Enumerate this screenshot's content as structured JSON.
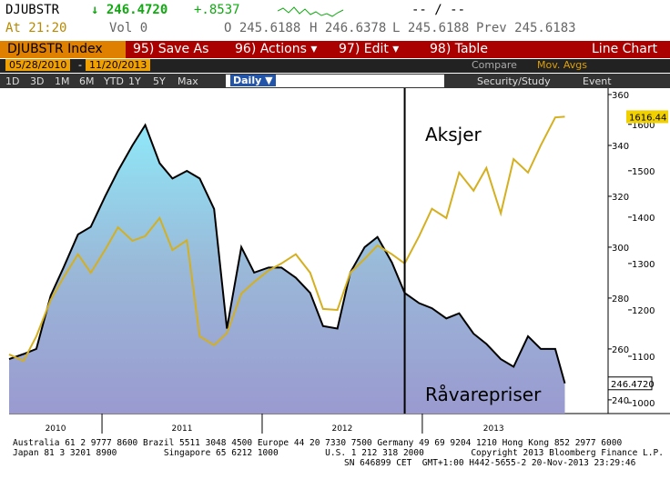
{
  "header": {
    "ticker": "DJUBSTR",
    "last": "↓ 246.4720",
    "change": "+.8537",
    "bid_ask": "-- / --",
    "time": "At 21:20",
    "volume": "Vol 0",
    "open": "O 245.6188",
    "high": "H 246.6378",
    "low": "L 245.6188",
    "prev": "Prev 245.6183"
  },
  "menu": {
    "security": "DJUBSTR Index",
    "items": [
      "95) Save As",
      "96) Actions ▾",
      "97) Edit ▾",
      "98) Table"
    ],
    "view": "Line Chart"
  },
  "range": {
    "start": "05/28/2010",
    "separator": "-",
    "end": "11/20/2013",
    "compare": "Compare",
    "mov_avgs": "Mov. Avgs"
  },
  "periods": {
    "buttons": [
      "1D",
      "3D",
      "1M",
      "6M",
      "YTD",
      "1Y",
      "5Y",
      "Max"
    ],
    "frequency": "Daily ▼",
    "study": "Security/Study",
    "event": "Event"
  },
  "chart_data": {
    "type": "line",
    "x": [
      2010.42,
      2010.51,
      2010.59,
      2010.68,
      2010.76,
      2010.85,
      2010.93,
      2011.02,
      2011.1,
      2011.19,
      2011.27,
      2011.36,
      2011.44,
      2011.53,
      2011.61,
      2011.7,
      2011.78,
      2011.87,
      2011.95,
      2012.04,
      2012.12,
      2012.21,
      2012.3,
      2012.38,
      2012.47,
      2012.55,
      2012.64,
      2012.72,
      2012.81,
      2012.89,
      2012.98,
      2013.06,
      2013.15,
      2013.23,
      2013.32,
      2013.4,
      2013.49,
      2013.57,
      2013.66,
      2013.74,
      2013.83,
      2013.89
    ],
    "series": [
      {
        "name": "Råvarepriser",
        "color": "#000000",
        "values": [
          256,
          258,
          260,
          281,
          292,
          305,
          308,
          320,
          330,
          340,
          348,
          333,
          327,
          330,
          327,
          315,
          268,
          300,
          290,
          292,
          292,
          288,
          282,
          269,
          268,
          290,
          300,
          304,
          294,
          282,
          278,
          276,
          272,
          274,
          266,
          262,
          256,
          253,
          265,
          260,
          260,
          246.47
        ],
        "last_label": "246.4720"
      },
      {
        "name": "Aksjer",
        "color": "#d4b020",
        "axis": "y2",
        "values": [
          1104,
          1090,
          1143,
          1222,
          1270,
          1320,
          1280,
          1330,
          1378,
          1349,
          1359,
          1398,
          1329,
          1350,
          1143,
          1124,
          1150,
          1235,
          1260,
          1285,
          1300,
          1320,
          1280,
          1202,
          1200,
          1280,
          1310,
          1339,
          1320,
          1300,
          1359,
          1418,
          1398,
          1496,
          1457,
          1506,
          1408,
          1525,
          1496,
          1555,
          1615,
          1616.44
        ],
        "last_label": "1616.44"
      }
    ],
    "xlim": [
      2010.42,
      2014.16
    ],
    "xticks": [
      2011,
      2012,
      2013
    ],
    "year_labels": [
      "2010",
      "2011",
      "2012",
      "2013"
    ],
    "ylim": [
      234.6,
      362.5
    ],
    "yticks": [
      240,
      260,
      280,
      300,
      320,
      340,
      360
    ],
    "y2lim": [
      976.5,
      1678
    ],
    "y2ticks": [
      1000,
      1100,
      1200,
      1300,
      1400,
      1500,
      1600
    ],
    "marker_x": 2012.89
  },
  "footer": [
    "Australia 61 2 9777 8600 Brazil 5511 3048 4500 Europe 44 20 7330 7500 Germany 49 69 9204 1210 Hong Kong 852 2977 6000",
    "Japan 81 3 3201 8900         Singapore 65 6212 1000         U.S. 1 212 318 2000         Copyright 2013 Bloomberg Finance L.P.",
    "SN 646899 CET  GMT+1:00 H442-5655-2 20-Nov-2013 23:29:46"
  ]
}
